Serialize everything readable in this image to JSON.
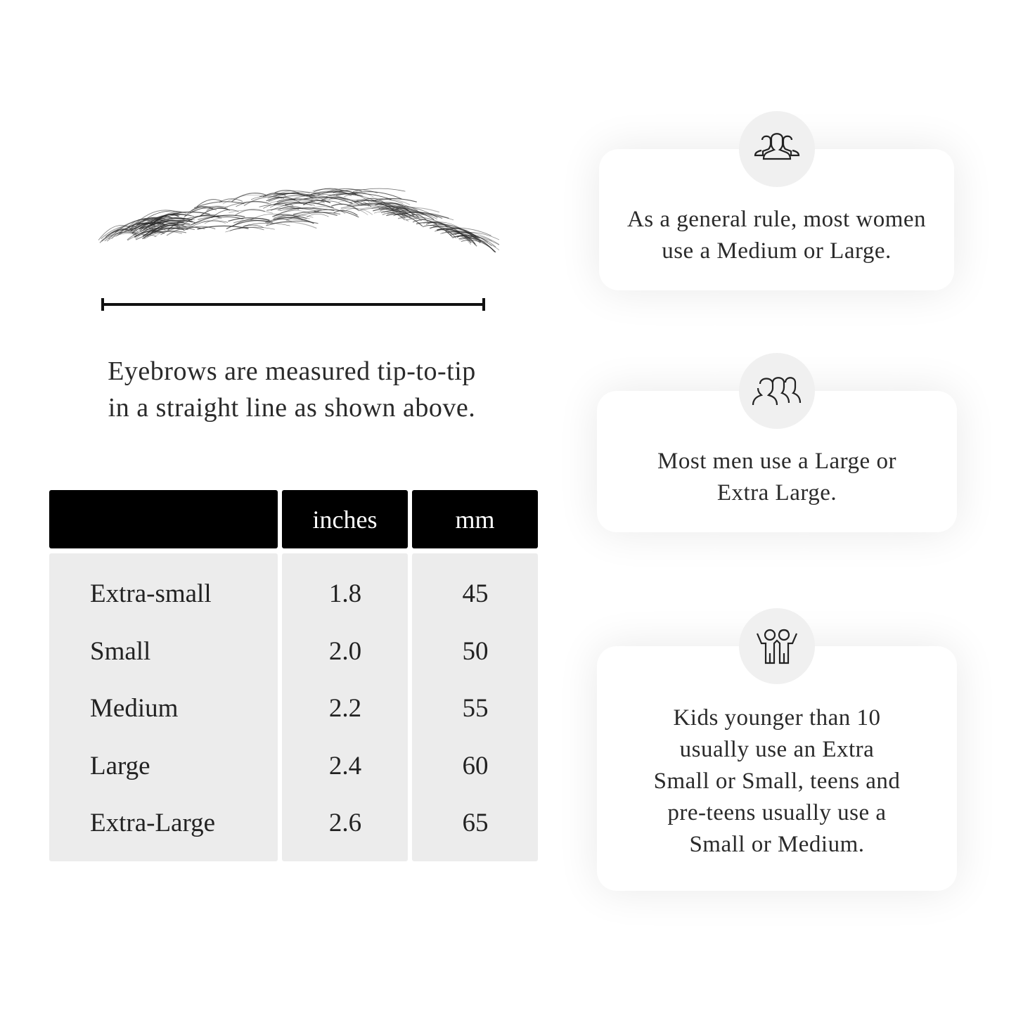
{
  "measurement": {
    "caption_line1": "Eyebrows are measured tip-to-tip",
    "caption_line2": "in a straight line as shown above."
  },
  "size_table": {
    "headers": [
      "",
      "inches",
      "mm"
    ],
    "rows": [
      {
        "size": "Extra-small",
        "inches": "1.8",
        "mm": "45"
      },
      {
        "size": "Small",
        "inches": "2.0",
        "mm": "50"
      },
      {
        "size": "Medium",
        "inches": "2.2",
        "mm": "55"
      },
      {
        "size": "Large",
        "inches": "2.4",
        "mm": "60"
      },
      {
        "size": "Extra-Large",
        "inches": "2.6",
        "mm": "65"
      }
    ]
  },
  "cards": [
    {
      "icon": "women-group-icon",
      "line1": "As a general rule, most women",
      "line2": "use a Medium or Large."
    },
    {
      "icon": "men-group-icon",
      "line1": "Most men use a Large or",
      "line2": "Extra Large."
    },
    {
      "icon": "kids-icon",
      "line1": "Kids younger than 10",
      "line2": "usually use an Extra",
      "line3": "Small or Small, teens and",
      "line4": "pre-teens usually use a",
      "line5": "Small or Medium."
    }
  ]
}
